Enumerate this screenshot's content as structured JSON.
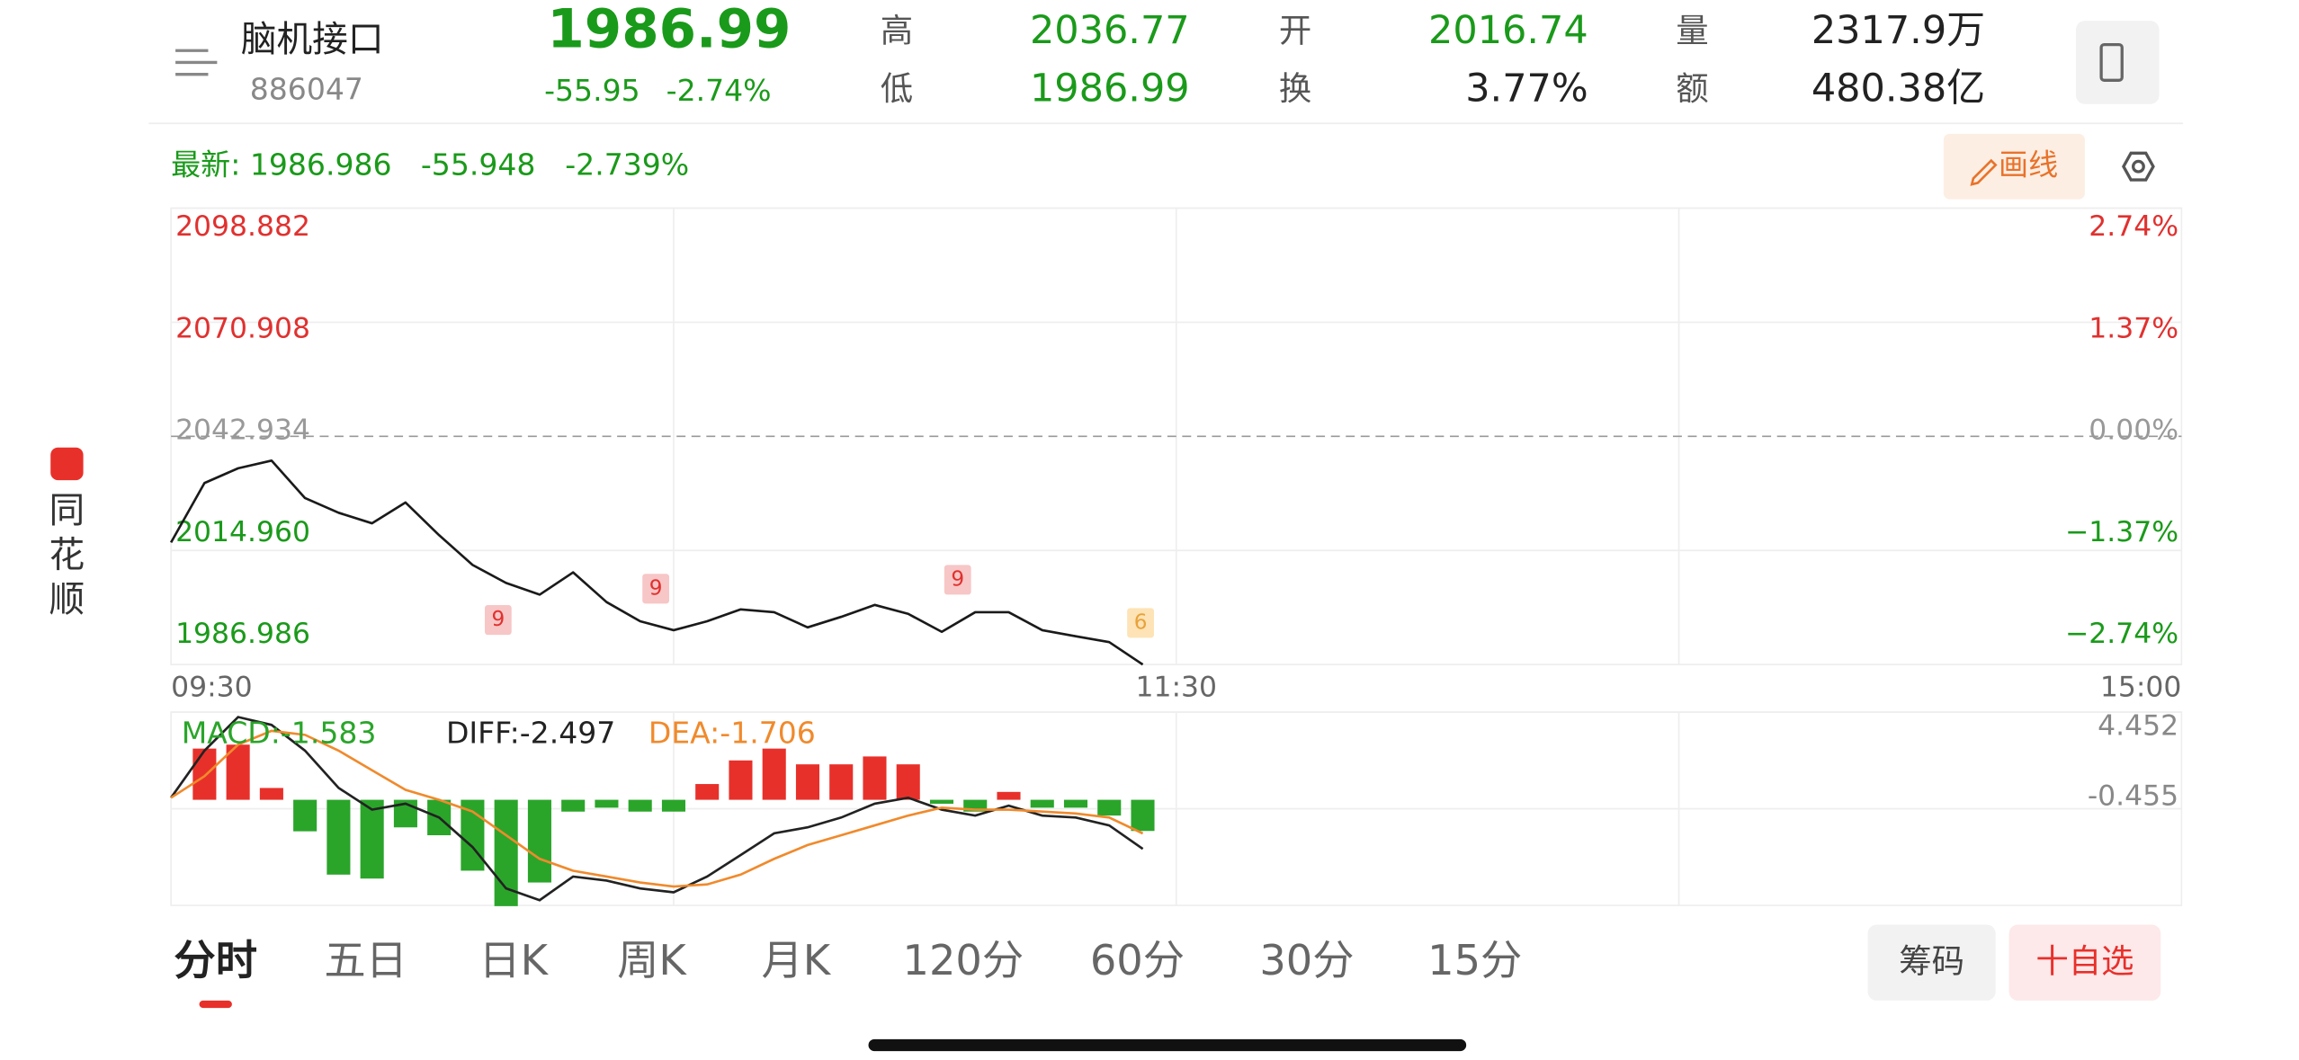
{
  "header": {
    "name": "脑机接口",
    "code": "886047",
    "price": "1986.99",
    "change": "-55.95",
    "change_pct": "-2.74%",
    "stats": [
      {
        "label": "高",
        "value": "2036.77"
      },
      {
        "label": "低",
        "value": "1986.99"
      },
      {
        "label": "开",
        "value": "2016.74"
      },
      {
        "label": "换",
        "value": "3.77%"
      },
      {
        "label": "量",
        "value": "2317.9万"
      },
      {
        "label": "额",
        "value": "480.38亿"
      }
    ]
  },
  "info": {
    "latest": "最新: 1986.986",
    "change": "-55.948",
    "change_pct": "-2.739%",
    "draw_button": "画线"
  },
  "sidebar": {
    "app": [
      "同",
      "花",
      "顺"
    ]
  },
  "chart_data": [
    {
      "type": "line",
      "color": "#1a1a1a",
      "ylim": [
        1986.986,
        2098.882
      ],
      "yticks": [
        2098.882,
        2070.908,
        2042.934,
        {
          "value": 2014.96,
          "label": "2014.960"
        },
        1986.986
      ],
      "y2lim": [
        -2.74,
        2.74
      ],
      "y2ticks": [
        {
          "value": 2.74,
          "label": "2.74%"
        },
        {
          "value": 1.37,
          "label": "1.37%"
        },
        {
          "value": 0,
          "label": "0.00%"
        },
        {
          "value": -1.37,
          "label": "−1.37%"
        },
        {
          "value": -2.74,
          "label": "−2.74%"
        }
      ],
      "x_labels": [
        "09:30",
        "11:30",
        "15:00"
      ],
      "signals": [
        "9",
        "9",
        "9",
        "6"
      ],
      "values": [
        2016.9,
        2031.5,
        2035.1,
        2037.0,
        2027.8,
        2024.2,
        2021.6,
        2026.7,
        2018.7,
        2011.4,
        2007.0,
        2004.1,
        2009.6,
        2002.3,
        1997.6,
        1995.4,
        1997.6,
        2000.5,
        1999.8,
        1996.1,
        1998.7,
        2001.6,
        1999.4,
        1995.0,
        1999.8,
        1999.8,
        1995.4,
        1993.9,
        1992.5,
        1986.99
      ],
      "grid": true
    },
    {
      "type": "macd",
      "ylim": [
        -5.362,
        4.452
      ],
      "yticks": [
        4.452,
        -0.455
      ],
      "series": [
        {
          "name": "MACD:-1.583",
          "color": "#2aa52a",
          "up_color": "#e8302a",
          "values": [
            0,
            2.6,
            2.8,
            0.6,
            -1.6,
            -3.8,
            -4.0,
            -1.4,
            -1.8,
            -3.6,
            -5.4,
            -4.2,
            -0.6,
            -0.4,
            -0.6,
            -0.6,
            0.8,
            2.0,
            2.6,
            1.8,
            1.8,
            2.2,
            1.8,
            -0.2,
            -0.6,
            0.4,
            -0.4,
            -0.4,
            -0.8,
            -1.583
          ]
        },
        {
          "name": "DIFF:-2.497",
          "color": "#222222",
          "values": [
            0.1,
            2.5,
            4.2,
            3.8,
            2.5,
            0.6,
            -0.5,
            -0.2,
            -0.9,
            -2.4,
            -4.5,
            -5.1,
            -3.9,
            -4.1,
            -4.5,
            -4.7,
            -3.9,
            -2.8,
            -1.7,
            -1.4,
            -0.9,
            -0.2,
            0.1,
            -0.5,
            -0.8,
            -0.3,
            -0.8,
            -0.9,
            -1.3,
            -2.497
          ]
        },
        {
          "name": "DEA:-1.706",
          "color": "#f08a2c",
          "values": [
            0.1,
            1.2,
            2.8,
            3.5,
            3.3,
            2.5,
            1.5,
            0.5,
            0.0,
            -0.6,
            -1.8,
            -3.0,
            -3.6,
            -3.9,
            -4.2,
            -4.4,
            -4.3,
            -3.8,
            -3.0,
            -2.3,
            -1.8,
            -1.3,
            -0.8,
            -0.4,
            -0.5,
            -0.5,
            -0.6,
            -0.7,
            -0.9,
            -1.706
          ]
        }
      ]
    }
  ],
  "tabs": [
    "分时",
    "五日",
    "日K",
    "周K",
    "月K",
    "120分",
    "60分",
    "30分",
    "15分"
  ],
  "buttons": {
    "chips": "筹码",
    "watchlist": "十自选"
  }
}
